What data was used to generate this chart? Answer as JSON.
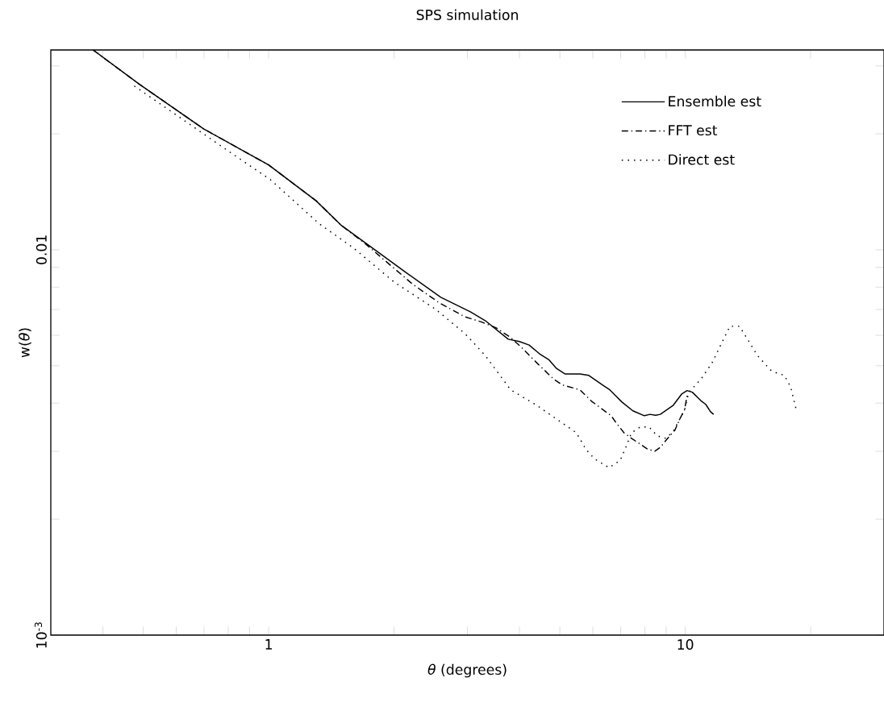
{
  "chart_data": {
    "type": "line",
    "title": "SPS simulation",
    "xlabel": "*θ* (degrees)",
    "ylabel": "w(*θ*)",
    "log": "xy",
    "legend": "top right",
    "xlim": [
      0.3,
      30
    ],
    "ylim": [
      0.001,
      0.033
    ],
    "xticks": [
      {
        "value": 0.4,
        "label": null
      },
      {
        "value": 0.5,
        "label": null
      },
      {
        "value": 0.6,
        "label": null
      },
      {
        "value": 0.7,
        "label": null
      },
      {
        "value": 0.8,
        "label": null
      },
      {
        "value": 0.9,
        "label": null
      },
      1,
      {
        "value": 2,
        "label": null
      },
      {
        "value": 3,
        "label": null
      },
      {
        "value": 4,
        "label": null
      },
      {
        "value": 5,
        "label": null
      },
      {
        "value": 6,
        "label": null
      },
      {
        "value": 7,
        "label": null
      },
      {
        "value": 8,
        "label": null
      },
      {
        "value": 9,
        "label": null
      },
      10,
      {
        "value": 20,
        "label": null
      }
    ],
    "yticks": [
      {
        "value": 0.001,
        "label": "10$^{-3}$"
      },
      {
        "value": 0.002,
        "label": null
      },
      {
        "value": 0.003,
        "label": null
      },
      {
        "value": 0.004,
        "label": null
      },
      {
        "value": 0.005,
        "label": null
      },
      {
        "value": 0.006,
        "label": null
      },
      {
        "value": 0.007,
        "label": null
      },
      {
        "value": 0.008,
        "label": null
      },
      {
        "value": 0.009,
        "label": null
      },
      0.01,
      {
        "value": 0.02,
        "label": null
      },
      {
        "value": 0.03,
        "label": null
      }
    ],
    "series": [
      {
        "name": "Ensemble est",
        "color": "#000000",
        "line_style": "solid",
        "x": [
          0.379,
          0.489,
          0.698,
          1.0,
          1.3,
          1.49,
          1.88,
          2.12,
          2.59,
          3.05,
          3.31,
          3.76,
          4.0,
          4.22,
          4.47,
          4.7,
          4.91,
          5.15,
          5.59,
          5.87,
          6.33,
          6.59,
          7.04,
          7.49,
          7.98,
          8.23,
          8.49,
          8.71,
          9.36,
          9.82,
          10.1,
          10.4,
          10.9,
          11.2,
          11.5,
          11.7
        ],
        "values": [
          0.033,
          0.0269,
          0.0206,
          0.0166,
          0.0134,
          0.0116,
          0.00966,
          0.00878,
          0.00753,
          0.0069,
          0.00655,
          0.00586,
          0.00578,
          0.00566,
          0.00537,
          0.00519,
          0.00492,
          0.00476,
          0.00476,
          0.00472,
          0.00446,
          0.00433,
          0.00403,
          0.00382,
          0.00371,
          0.00374,
          0.00372,
          0.00374,
          0.00395,
          0.00423,
          0.00431,
          0.00427,
          0.00406,
          0.00397,
          0.0038,
          0.00374
        ]
      },
      {
        "name": "FFT est",
        "color": "#000000",
        "line_style": "dashdot",
        "x": [
          0.379,
          0.489,
          0.698,
          1.0,
          1.3,
          1.49,
          1.7,
          1.97,
          2.22,
          2.57,
          2.96,
          3.25,
          3.52,
          3.81,
          4.06,
          4.4,
          4.84,
          5.07,
          5.59,
          5.95,
          6.14,
          6.64,
          6.86,
          7.13,
          7.43,
          7.8,
          8.11,
          8.45,
          8.71,
          9.07,
          9.44,
          9.73,
          9.96,
          10.1
        ],
        "values": [
          0.033,
          0.0269,
          0.0206,
          0.0166,
          0.0134,
          0.0116,
          0.0104,
          0.00908,
          0.00813,
          0.00728,
          0.0067,
          0.00649,
          0.00627,
          0.00592,
          0.00556,
          0.00509,
          0.00461,
          0.00446,
          0.00433,
          0.00405,
          0.00395,
          0.00371,
          0.00353,
          0.00335,
          0.00324,
          0.00313,
          0.00304,
          0.003,
          0.00307,
          0.00324,
          0.0034,
          0.00366,
          0.00384,
          0.00418
        ]
      },
      {
        "name": "Direct est",
        "color": "#000000",
        "line_style": "dotted",
        "x": [
          0.476,
          0.603,
          0.797,
          1.01,
          1.32,
          1.6,
          2.0,
          2.52,
          2.96,
          3.31,
          3.7,
          3.81,
          4.4,
          5.07,
          5.48,
          5.77,
          6.05,
          6.56,
          6.98,
          7.2,
          7.43,
          7.8,
          8.19,
          8.56,
          8.99,
          9.36,
          9.73,
          9.96,
          10.2,
          10.9,
          11.6,
          12.3,
          12.8,
          13.5,
          14.0,
          14.9,
          16.0,
          16.4,
          17.3,
          17.9,
          18.5
        ],
        "values": [
          0.0266,
          0.0223,
          0.0181,
          0.0152,
          0.0117,
          0.0101,
          0.00825,
          0.007,
          0.00606,
          0.00532,
          0.00452,
          0.00433,
          0.00395,
          0.00355,
          0.00335,
          0.00304,
          0.00287,
          0.00272,
          0.00284,
          0.00307,
          0.00335,
          0.00347,
          0.00347,
          0.00329,
          0.00324,
          0.00338,
          0.00366,
          0.00384,
          0.00427,
          0.00461,
          0.00509,
          0.0058,
          0.00633,
          0.00633,
          0.00594,
          0.00532,
          0.00488,
          0.00481,
          0.00472,
          0.00441,
          0.00382
        ]
      }
    ]
  }
}
